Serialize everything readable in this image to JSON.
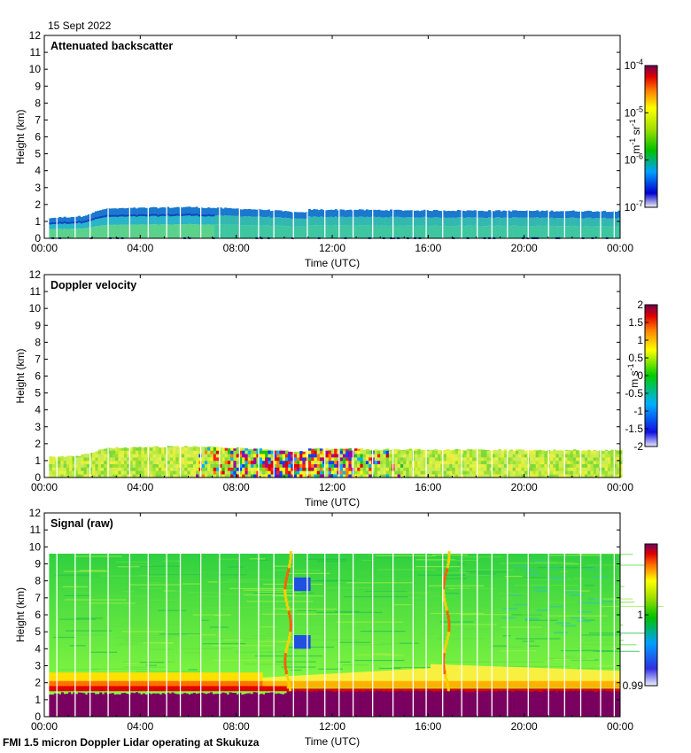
{
  "date_label": "15 Sept 2022",
  "footer": "FMI 1.5 micron Doppler Lidar operating at Skukuza",
  "chart_data": [
    {
      "type": "heatmap",
      "title": "Attenuated backscatter",
      "xlabel": "Time (UTC)",
      "ylabel": "Height (km)",
      "x_ticks": [
        "00:00",
        "04:00",
        "08:00",
        "12:00",
        "16:00",
        "20:00",
        "00:00"
      ],
      "x_range_hours": [
        0,
        24
      ],
      "ylim": [
        0,
        12
      ],
      "y_ticks": [
        "0",
        "1",
        "2",
        "3",
        "4",
        "5",
        "6",
        "7",
        "8",
        "9",
        "10",
        "11",
        "12"
      ],
      "colorbar": {
        "scale": "log",
        "range": [
          1e-07,
          0.0001
        ],
        "ticks": [
          {
            "base": "10",
            "exp": "-4",
            "value": 0.0001
          },
          {
            "base": "10",
            "exp": "-5",
            "value": 1e-05
          },
          {
            "base": "10",
            "exp": "-6",
            "value": 1e-06
          },
          {
            "base": "10",
            "exp": "-7",
            "value": 1e-07
          }
        ],
        "unit_main": "m",
        "unit_exp1": "-1",
        "unit_sr": " sr",
        "unit_exp2": "-1"
      },
      "boundary_layer_top_km": [
        {
          "t": 0.2,
          "h": 1.2
        },
        {
          "t": 1.5,
          "h": 1.3
        },
        {
          "t": 2.5,
          "h": 1.75
        },
        {
          "t": 6,
          "h": 1.85
        },
        {
          "t": 9,
          "h": 1.7
        },
        {
          "t": 10.8,
          "h": 1.5
        },
        {
          "t": 11,
          "h": 1.7
        },
        {
          "t": 16,
          "h": 1.65
        },
        {
          "t": 24,
          "h": 1.6
        }
      ]
    },
    {
      "type": "heatmap",
      "title": "Doppler velocity",
      "xlabel": "Time (UTC)",
      "ylabel": "Height (km)",
      "x_ticks": [
        "00:00",
        "04:00",
        "08:00",
        "12:00",
        "16:00",
        "20:00",
        "00:00"
      ],
      "x_range_hours": [
        0,
        24
      ],
      "ylim": [
        0,
        12
      ],
      "y_ticks": [
        "0",
        "1",
        "2",
        "3",
        "4",
        "5",
        "6",
        "7",
        "8",
        "9",
        "10",
        "11",
        "12"
      ],
      "colorbar": {
        "scale": "linear",
        "range": [
          -2,
          2
        ],
        "ticks": [
          "2",
          "1.5",
          "1",
          "0.5",
          "0",
          "-0.5",
          "-1",
          "-1.5",
          "-2"
        ],
        "unit_main": "m s",
        "unit_exp1": "-1"
      },
      "turbulent_period_hours": [
        6,
        15
      ]
    },
    {
      "type": "heatmap",
      "title": "Signal (raw)",
      "xlabel": "Time (UTC)",
      "ylabel": "Height (km)",
      "x_ticks": [
        "00:00",
        "04:00",
        "08:00",
        "12:00",
        "16:00",
        "20:00",
        "00:00"
      ],
      "x_range_hours": [
        0,
        24
      ],
      "ylim": [
        0,
        12
      ],
      "y_ticks": [
        "0",
        "1",
        "2",
        "3",
        "4",
        "5",
        "6",
        "7",
        "8",
        "9",
        "10",
        "11",
        "12"
      ],
      "data_top_km": 9.6,
      "colorbar": {
        "scale": "linear",
        "range": [
          0.99,
          1.01
        ],
        "ticks": [
          "1",
          "0.99"
        ]
      }
    }
  ]
}
